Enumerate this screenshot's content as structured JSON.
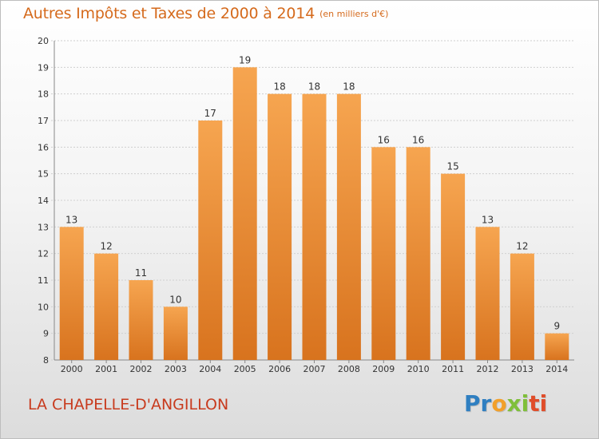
{
  "title": "Autres Impôts et Taxes de 2000 à 2014",
  "unit_label": "(en milliers d'€)",
  "commune": "LA CHAPELLE-D'ANGILLON",
  "brand": {
    "letters": [
      "P",
      "r",
      "o",
      "x",
      "i",
      "t",
      "i"
    ],
    "colors": [
      "#2f7fc1",
      "#2f7fc1",
      "#f2a02a",
      "#7fbf3a",
      "#7fbf3a",
      "#e04d2a",
      "#e04d2a"
    ]
  },
  "colors": {
    "bar_top": "#f6a550",
    "bar_bottom": "#d8731e",
    "title": "#d56a1c",
    "commune": "#c83b1e"
  },
  "chart_data": {
    "type": "bar",
    "categories": [
      "2000",
      "2001",
      "2002",
      "2003",
      "2004",
      "2005",
      "2006",
      "2007",
      "2008",
      "2009",
      "2010",
      "2011",
      "2012",
      "2013",
      "2014"
    ],
    "values": [
      13,
      12,
      11,
      10,
      17,
      19,
      18,
      18,
      18,
      16,
      16,
      15,
      13,
      12,
      9
    ],
    "ylim": [
      8,
      20
    ],
    "yticks": [
      8,
      9,
      10,
      11,
      12,
      13,
      14,
      15,
      16,
      17,
      18,
      19,
      20
    ],
    "grid": true,
    "title": "Autres Impôts et Taxes de 2000 à 2014",
    "xlabel": "",
    "ylabel": ""
  }
}
